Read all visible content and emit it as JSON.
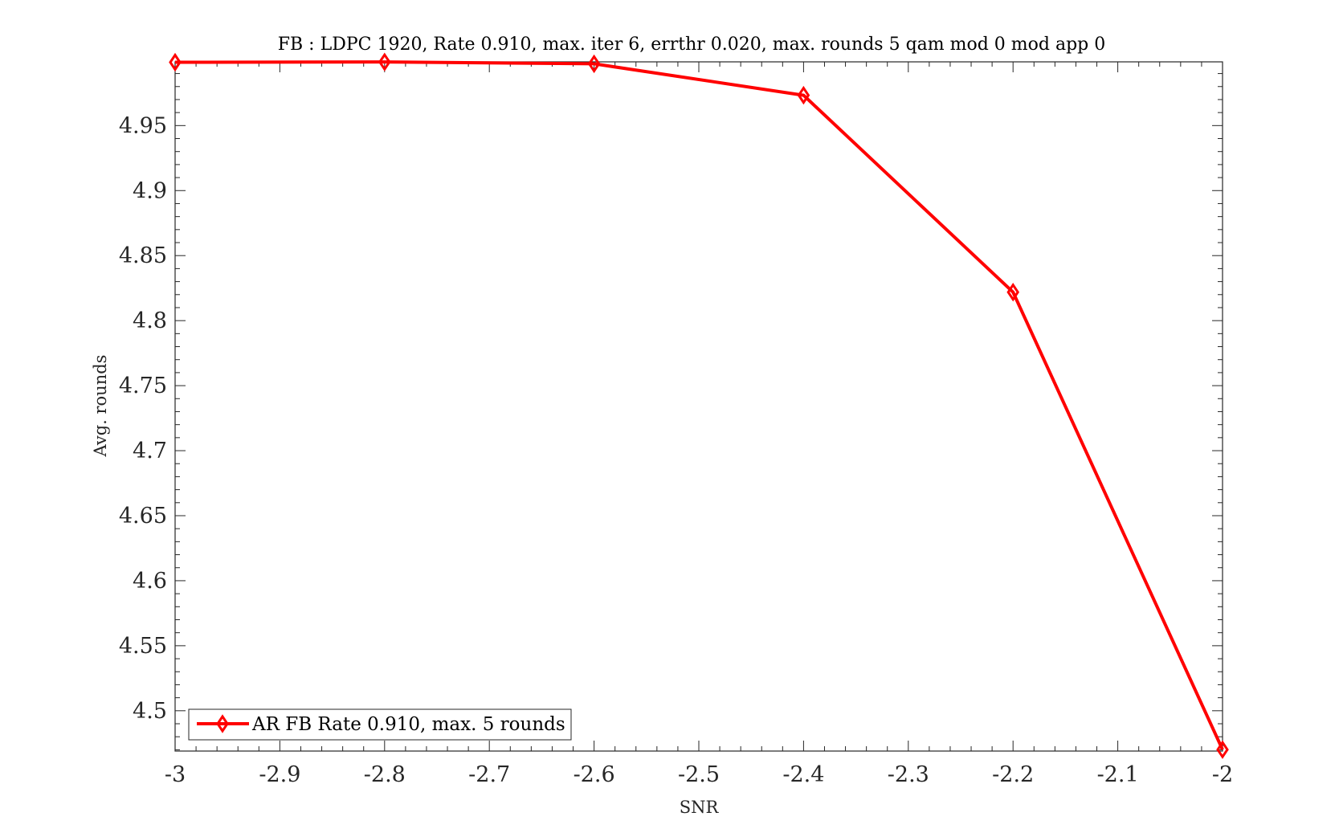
{
  "chart_data": {
    "type": "line",
    "title": "FB : LDPC 1920, Rate 0.910, max. iter 6, errthr 0.020, max. rounds 5 qam mod 0 mod app 0",
    "xlabel": "SNR",
    "ylabel": "Avg. rounds",
    "xlim": [
      -3,
      -2
    ],
    "ylim": [
      4.469,
      4.999
    ],
    "x_ticks": [
      -3,
      -2.9,
      -2.8,
      -2.7,
      -2.6,
      -2.5,
      -2.4,
      -2.3,
      -2.2,
      -2.1,
      -2
    ],
    "x_tick_labels": [
      "-3",
      "-2.9",
      "-2.8",
      "-2.7",
      "-2.6",
      "-2.5",
      "-2.4",
      "-2.3",
      "-2.2",
      "-2.1",
      "-2"
    ],
    "y_ticks": [
      4.5,
      4.55,
      4.6,
      4.65,
      4.7,
      4.75,
      4.8,
      4.85,
      4.9,
      4.95
    ],
    "y_tick_labels": [
      "4.5",
      "4.55",
      "4.6",
      "4.65",
      "4.7",
      "4.75",
      "4.8",
      "4.85",
      "4.9",
      "4.95"
    ],
    "grid": false,
    "legend_position": "bottom-left",
    "series": [
      {
        "name": "AR FB Rate 0.910, max. 5 rounds",
        "color": "#ff0000",
        "marker": "diamond",
        "x": [
          -3,
          -2.8,
          -2.6,
          -2.4,
          -2.2,
          -2
        ],
        "y": [
          4.9987,
          4.9989,
          4.9975,
          4.9733,
          4.8219,
          4.4701
        ]
      }
    ]
  }
}
